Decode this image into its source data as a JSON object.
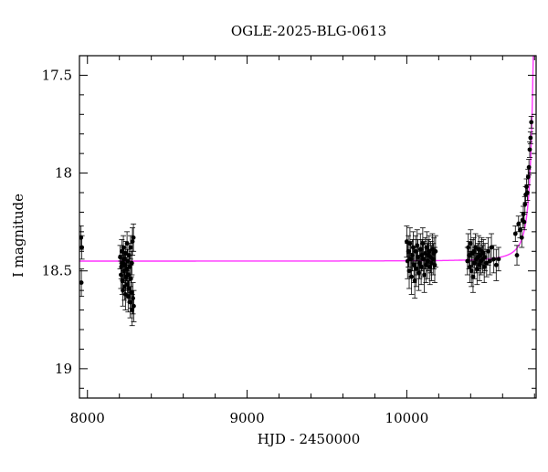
{
  "chart_data": {
    "type": "scatter",
    "title": "OGLE-2025-BLG-0613",
    "xlabel": "HJD - 2450000",
    "ylabel": "I magnitude",
    "xlim": [
      7950,
      10810
    ],
    "ylim": [
      19.15,
      17.4
    ],
    "y_inverted": true,
    "x_ticks": [
      8000,
      9000,
      10000
    ],
    "x_tick_labels": [
      "8000",
      "9000",
      "10000"
    ],
    "y_ticks": [
      17.5,
      18,
      18.5,
      19
    ],
    "y_tick_labels": [
      "17.5",
      "18",
      "18.5",
      "19"
    ],
    "grid": false,
    "legend": "none",
    "colors": {
      "points": "#000000",
      "model": "#ff33ff"
    },
    "series": [
      {
        "kind": "points-with-errorbars",
        "points": [
          [
            7960,
            18.33,
            0.06
          ],
          [
            7965,
            18.38,
            0.06
          ],
          [
            7962,
            18.56,
            0.07
          ],
          [
            8205,
            18.43,
            0.06
          ],
          [
            8210,
            18.52,
            0.07
          ],
          [
            8212,
            18.48,
            0.06
          ],
          [
            8215,
            18.4,
            0.06
          ],
          [
            8218,
            18.55,
            0.07
          ],
          [
            8220,
            18.46,
            0.06
          ],
          [
            8222,
            18.6,
            0.08
          ],
          [
            8225,
            18.38,
            0.06
          ],
          [
            8228,
            18.5,
            0.06
          ],
          [
            8230,
            18.44,
            0.06
          ],
          [
            8232,
            18.58,
            0.07
          ],
          [
            8235,
            18.47,
            0.06
          ],
          [
            8238,
            18.62,
            0.08
          ],
          [
            8240,
            18.41,
            0.06
          ],
          [
            8242,
            18.53,
            0.07
          ],
          [
            8245,
            18.49,
            0.06
          ],
          [
            8248,
            18.36,
            0.06
          ],
          [
            8250,
            18.57,
            0.07
          ],
          [
            8252,
            18.45,
            0.06
          ],
          [
            8255,
            18.63,
            0.08
          ],
          [
            8258,
            18.52,
            0.07
          ],
          [
            8260,
            18.42,
            0.06
          ],
          [
            8262,
            18.59,
            0.07
          ],
          [
            8265,
            18.48,
            0.06
          ],
          [
            8268,
            18.66,
            0.08
          ],
          [
            8270,
            18.38,
            0.06
          ],
          [
            8272,
            18.54,
            0.07
          ],
          [
            8275,
            18.61,
            0.08
          ],
          [
            8278,
            18.46,
            0.06
          ],
          [
            8280,
            18.7,
            0.08
          ],
          [
            8282,
            18.35,
            0.07
          ],
          [
            8285,
            18.64,
            0.08
          ],
          [
            8288,
            18.33,
            0.07
          ],
          [
            8290,
            18.68,
            0.08
          ],
          [
            10000,
            18.35,
            0.08
          ],
          [
            10005,
            18.45,
            0.09
          ],
          [
            10010,
            18.4,
            0.08
          ],
          [
            10015,
            18.5,
            0.09
          ],
          [
            10020,
            18.36,
            0.08
          ],
          [
            10025,
            18.44,
            0.09
          ],
          [
            10030,
            18.53,
            0.09
          ],
          [
            10035,
            18.42,
            0.08
          ],
          [
            10040,
            18.38,
            0.08
          ],
          [
            10045,
            18.47,
            0.09
          ],
          [
            10050,
            18.55,
            0.09
          ],
          [
            10055,
            18.4,
            0.08
          ],
          [
            10060,
            18.49,
            0.09
          ],
          [
            10065,
            18.37,
            0.08
          ],
          [
            10070,
            18.43,
            0.09
          ],
          [
            10075,
            18.51,
            0.09
          ],
          [
            10080,
            18.46,
            0.08
          ],
          [
            10085,
            18.39,
            0.08
          ],
          [
            10090,
            18.48,
            0.09
          ],
          [
            10095,
            18.42,
            0.08
          ],
          [
            10100,
            18.36,
            0.08
          ],
          [
            10105,
            18.44,
            0.09
          ],
          [
            10110,
            18.52,
            0.09
          ],
          [
            10115,
            18.41,
            0.08
          ],
          [
            10120,
            18.47,
            0.09
          ],
          [
            10125,
            18.38,
            0.08
          ],
          [
            10130,
            18.45,
            0.09
          ],
          [
            10135,
            18.42,
            0.08
          ],
          [
            10140,
            18.4,
            0.08
          ],
          [
            10145,
            18.48,
            0.09
          ],
          [
            10150,
            18.43,
            0.08
          ],
          [
            10155,
            18.46,
            0.09
          ],
          [
            10160,
            18.39,
            0.08
          ],
          [
            10165,
            18.44,
            0.08
          ],
          [
            10170,
            18.41,
            0.08
          ],
          [
            10175,
            18.47,
            0.09
          ],
          [
            10180,
            18.4,
            0.08
          ],
          [
            10380,
            18.45,
            0.07
          ],
          [
            10385,
            18.38,
            0.07
          ],
          [
            10390,
            18.42,
            0.07
          ],
          [
            10395,
            18.48,
            0.08
          ],
          [
            10400,
            18.36,
            0.07
          ],
          [
            10405,
            18.5,
            0.08
          ],
          [
            10410,
            18.41,
            0.07
          ],
          [
            10415,
            18.53,
            0.08
          ],
          [
            10420,
            18.4,
            0.07
          ],
          [
            10425,
            18.46,
            0.08
          ],
          [
            10430,
            18.38,
            0.07
          ],
          [
            10435,
            18.44,
            0.07
          ],
          [
            10440,
            18.49,
            0.08
          ],
          [
            10445,
            18.43,
            0.07
          ],
          [
            10450,
            18.39,
            0.07
          ],
          [
            10455,
            18.47,
            0.08
          ],
          [
            10460,
            18.42,
            0.07
          ],
          [
            10465,
            18.45,
            0.07
          ],
          [
            10470,
            18.4,
            0.07
          ],
          [
            10475,
            18.44,
            0.07
          ],
          [
            10480,
            18.41,
            0.07
          ],
          [
            10485,
            18.48,
            0.08
          ],
          [
            10490,
            18.43,
            0.07
          ],
          [
            10500,
            18.46,
            0.07
          ],
          [
            10510,
            18.4,
            0.07
          ],
          [
            10520,
            18.45,
            0.07
          ],
          [
            10530,
            18.38,
            0.07
          ],
          [
            10545,
            18.44,
            0.07
          ],
          [
            10560,
            18.47,
            0.08
          ],
          [
            10575,
            18.44,
            0.06
          ],
          [
            10680,
            18.31,
            0.04
          ],
          [
            10690,
            18.42,
            0.05
          ],
          [
            10700,
            18.26,
            0.04
          ],
          [
            10710,
            18.29,
            0.04
          ],
          [
            10720,
            18.33,
            0.05
          ],
          [
            10725,
            18.24,
            0.04
          ],
          [
            10730,
            18.21,
            0.04
          ],
          [
            10735,
            18.25,
            0.04
          ],
          [
            10740,
            18.16,
            0.04
          ],
          [
            10745,
            18.11,
            0.04
          ],
          [
            10750,
            18.07,
            0.04
          ],
          [
            10755,
            18.1,
            0.04
          ],
          [
            10760,
            18.02,
            0.04
          ],
          [
            10765,
            17.97,
            0.04
          ],
          [
            10770,
            17.88,
            0.04
          ],
          [
            10775,
            17.82,
            0.03
          ],
          [
            10780,
            17.74,
            0.03
          ]
        ]
      },
      {
        "kind": "model-curve",
        "baseline": 18.45,
        "t0": 10815,
        "rise_scale": 22,
        "rise_amplitude": 0.55
      }
    ]
  }
}
